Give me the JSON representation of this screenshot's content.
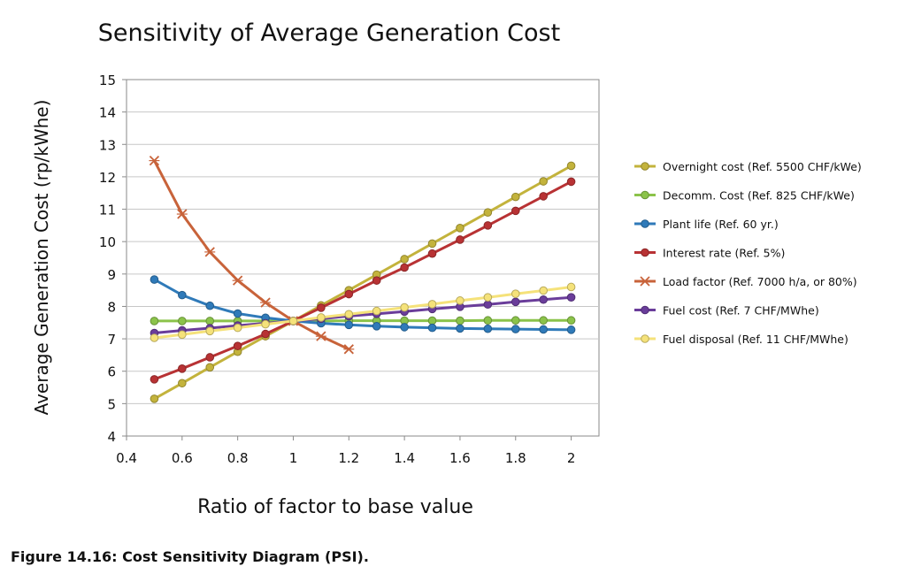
{
  "caption": "Figure 14.16: Cost Sensitivity Diagram (PSI).",
  "chart_data": {
    "type": "line",
    "title": "Sensitivity of Average Generation Cost",
    "xlabel": "Ratio of factor to base value",
    "ylabel": "Average Generation Cost (rp/kWhe)",
    "xlim": [
      0.4,
      2.1
    ],
    "ylim": [
      4,
      15
    ],
    "x_ticks": [
      "0.4",
      "0.6",
      "0.8",
      "1",
      "1.2",
      "1.4",
      "1.6",
      "1.8",
      "2"
    ],
    "y_ticks": [
      "4",
      "5",
      "6",
      "7",
      "8",
      "9",
      "10",
      "11",
      "12",
      "13",
      "14",
      "15"
    ],
    "x_tick_values": [
      0.4,
      0.6,
      0.8,
      1.0,
      1.2,
      1.4,
      1.6,
      1.8,
      2.0
    ],
    "y_tick_values": [
      4,
      5,
      6,
      7,
      8,
      9,
      10,
      11,
      12,
      13,
      14,
      15
    ],
    "grid": "horizontal",
    "legend_position": "right",
    "series": [
      {
        "name": "Overnight cost (Ref. 5500 CHF/kWe)",
        "color": "#c3b33c",
        "marker": "circle",
        "x": [
          0.5,
          0.6,
          0.7,
          0.8,
          0.9,
          1.0,
          1.1,
          1.2,
          1.3,
          1.4,
          1.5,
          1.6,
          1.7,
          1.8,
          1.9,
          2.0
        ],
        "y": [
          5.15,
          5.63,
          6.12,
          6.6,
          7.08,
          7.55,
          8.03,
          8.5,
          8.98,
          9.46,
          9.94,
          10.42,
          10.9,
          11.38,
          11.86,
          12.34
        ]
      },
      {
        "name": "Decomm. Cost (Ref. 825 CHF/kWe)",
        "color": "#8bc34a",
        "marker": "circle",
        "x": [
          0.5,
          0.6,
          0.7,
          0.8,
          0.9,
          1.0,
          1.1,
          1.2,
          1.3,
          1.4,
          1.5,
          1.6,
          1.7,
          1.8,
          1.9,
          2.0
        ],
        "y": [
          7.55,
          7.55,
          7.55,
          7.55,
          7.55,
          7.55,
          7.55,
          7.56,
          7.56,
          7.56,
          7.56,
          7.56,
          7.57,
          7.57,
          7.57,
          7.57
        ]
      },
      {
        "name": "Plant life (Ref. 60 yr.)",
        "color": "#2f7ab9",
        "marker": "circle",
        "x": [
          0.5,
          0.6,
          0.7,
          0.8,
          0.9,
          1.0,
          1.1,
          1.2,
          1.3,
          1.4,
          1.5,
          1.6,
          1.7,
          1.8,
          1.9,
          2.0
        ],
        "y": [
          8.83,
          8.35,
          8.02,
          7.78,
          7.65,
          7.55,
          7.48,
          7.43,
          7.39,
          7.36,
          7.34,
          7.32,
          7.31,
          7.3,
          7.29,
          7.28
        ]
      },
      {
        "name": "Interest rate (Ref. 5%)",
        "color": "#b83234",
        "marker": "circle",
        "x": [
          0.5,
          0.6,
          0.7,
          0.8,
          0.9,
          1.0,
          1.1,
          1.2,
          1.3,
          1.4,
          1.5,
          1.6,
          1.7,
          1.8,
          1.9,
          2.0
        ],
        "y": [
          5.75,
          6.08,
          6.43,
          6.78,
          7.15,
          7.55,
          7.96,
          8.38,
          8.8,
          9.2,
          9.63,
          10.06,
          10.5,
          10.95,
          11.4,
          11.85
        ]
      },
      {
        "name": "Load factor (Ref. 7000 h/a, or 80%)",
        "color": "#c8633a",
        "marker": "x",
        "x": [
          0.5,
          0.6,
          0.7,
          0.8,
          0.9,
          1.0,
          1.1,
          1.2
        ],
        "y": [
          12.5,
          10.85,
          9.68,
          8.8,
          8.12,
          7.55,
          7.08,
          6.68
        ]
      },
      {
        "name": "Fuel cost (Ref. 7 CHF/MWhe)",
        "color": "#6a3d9a",
        "marker": "circle",
        "x": [
          0.5,
          0.6,
          0.7,
          0.8,
          0.9,
          1.0,
          1.1,
          1.2,
          1.3,
          1.4,
          1.5,
          1.6,
          1.7,
          1.8,
          1.9,
          2.0
        ],
        "y": [
          7.18,
          7.26,
          7.33,
          7.41,
          7.48,
          7.55,
          7.62,
          7.7,
          7.77,
          7.84,
          7.92,
          7.99,
          8.06,
          8.14,
          8.21,
          8.28
        ]
      },
      {
        "name": "Fuel disposal (Ref. 11 CHF/MWhe)",
        "color": "#f5e27a",
        "marker": "circle",
        "x": [
          0.5,
          0.6,
          0.7,
          0.8,
          0.9,
          1.0,
          1.1,
          1.2,
          1.3,
          1.4,
          1.5,
          1.6,
          1.7,
          1.8,
          1.9,
          2.0
        ],
        "y": [
          7.03,
          7.13,
          7.24,
          7.34,
          7.45,
          7.55,
          7.66,
          7.76,
          7.86,
          7.97,
          8.07,
          8.18,
          8.28,
          8.39,
          8.49,
          8.6
        ]
      }
    ]
  }
}
